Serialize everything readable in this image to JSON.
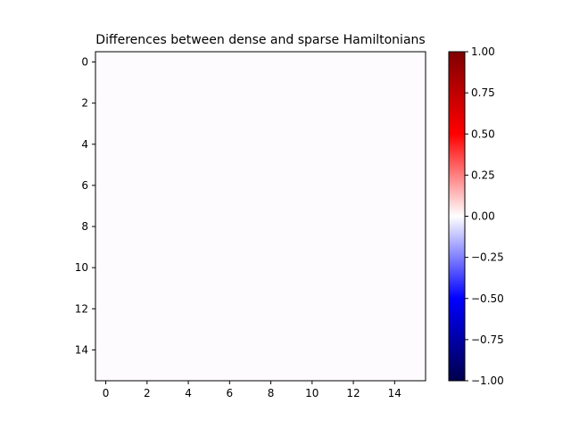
{
  "chart_data": {
    "type": "heatmap",
    "title": "Differences between dense and sparse Hamiltonians",
    "xlabel": "",
    "ylabel": "",
    "rows": 16,
    "cols": 16,
    "fill_value": 0.0,
    "x_ticks": [
      0,
      2,
      4,
      6,
      8,
      10,
      12,
      14
    ],
    "y_ticks": [
      0,
      2,
      4,
      6,
      8,
      10,
      12,
      14
    ],
    "xlim": [
      -0.5,
      15.5
    ],
    "ylim": [
      15.5,
      -0.5
    ],
    "y_inverted": true,
    "colormap": "seismic",
    "colorbar": {
      "vmin": -1.0,
      "vmax": 1.0,
      "ticks": [
        1.0,
        0.75,
        0.5,
        0.25,
        0.0,
        -0.25,
        -0.5,
        -0.75,
        -1.0
      ],
      "tick_labels": [
        "1.00",
        "0.75",
        "0.50",
        "0.25",
        "0.00",
        "−0.25",
        "−0.50",
        "−0.75",
        "−1.00"
      ],
      "placement": "right"
    },
    "colors": {
      "cell_near_zero": "#fdfbfd",
      "cmap_top": "#7f0000",
      "cmap_upper": "#ff0000",
      "cmap_mid": "#ffffff",
      "cmap_lower": "#0000ff",
      "cmap_bottom": "#00004c"
    }
  }
}
